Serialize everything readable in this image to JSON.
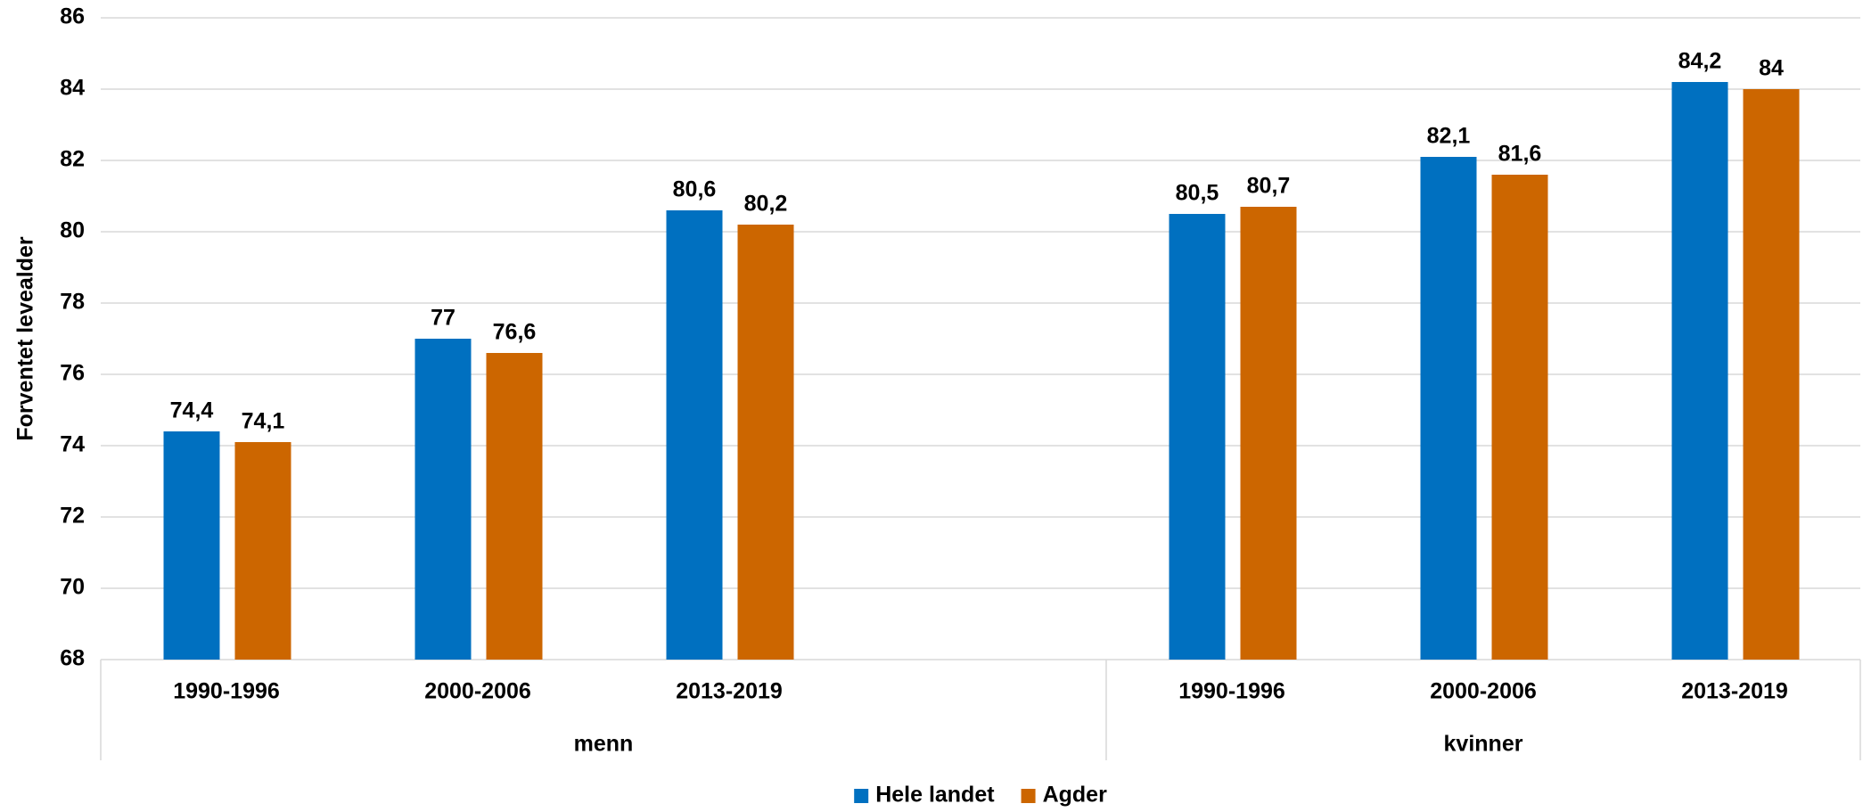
{
  "chart_data": {
    "type": "bar",
    "y_label": "Forventet levealder",
    "groups": [
      {
        "label": "menn",
        "categories": [
          "1990-1996",
          "2000-2006",
          "2013-2019",
          null
        ]
      },
      {
        "label": "kvinner",
        "categories": [
          "1990-1996",
          "2000-2006",
          "2013-2019"
        ]
      }
    ],
    "series": [
      {
        "name": "Hele landet",
        "color": "#0070c0",
        "values": [
          74.4,
          77,
          80.6,
          null,
          80.5,
          82.1,
          84.2
        ],
        "value_labels": [
          "74,4",
          "77",
          "80,6",
          null,
          "80,5",
          "82,1",
          "84,2"
        ]
      },
      {
        "name": "Agder",
        "color": "#cc6600",
        "values": [
          74.1,
          76.6,
          80.2,
          null,
          80.7,
          81.6,
          84
        ],
        "value_labels": [
          "74,1",
          "76,6",
          "80,2",
          null,
          "80,7",
          "81,6",
          "84"
        ]
      }
    ],
    "ylim": [
      68,
      86
    ],
    "yticks": [
      68,
      70,
      72,
      74,
      76,
      78,
      80,
      82,
      84,
      86
    ],
    "grid": true,
    "legend": "bottom"
  }
}
